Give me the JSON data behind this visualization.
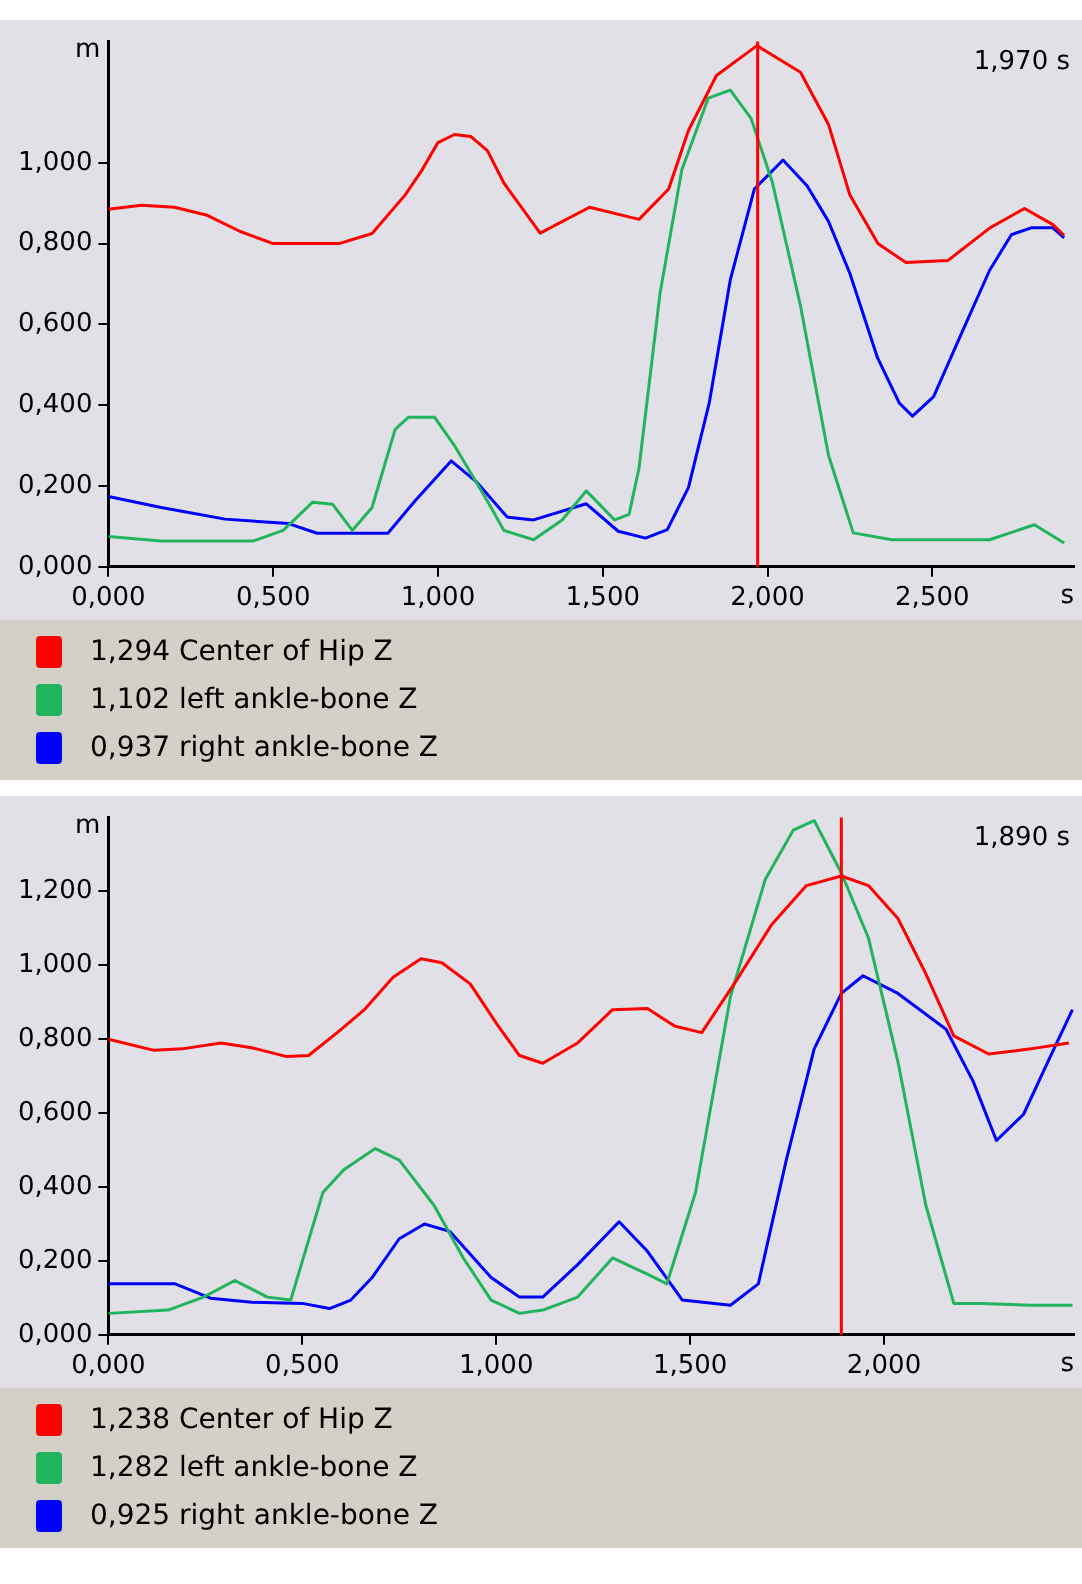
{
  "chart_data": [
    {
      "type": "line",
      "xlabel": "s",
      "ylabel": "m",
      "xlim": [
        0,
        2.93
      ],
      "ylim": [
        0,
        1.3
      ],
      "xticks": [
        {
          "value": 0,
          "label": "0,000"
        },
        {
          "value": 0.5,
          "label": "0,500"
        },
        {
          "value": 1,
          "label": "1,000"
        },
        {
          "value": 1.5,
          "label": "1,500"
        },
        {
          "value": 2,
          "label": "2,000"
        },
        {
          "value": 2.5,
          "label": "2,500"
        }
      ],
      "yticks": [
        {
          "value": 0,
          "label": "0,000"
        },
        {
          "value": 0.2,
          "label": "0,200"
        },
        {
          "value": 0.4,
          "label": "0,400"
        },
        {
          "value": 0.6,
          "label": "0,600"
        },
        {
          "value": 0.8,
          "label": "0,800"
        },
        {
          "value": 1,
          "label": "1,000"
        }
      ],
      "grid": false,
      "legend": "bottom left",
      "ref_lines": [
        {
          "axis": "x",
          "value": 1.97,
          "color": "#ff0000"
        }
      ],
      "annotations": [
        "1,970 s"
      ],
      "series": [
        {
          "name": "1,294 Center of Hip Z",
          "color": "#ff0000",
          "x": [
            0,
            0.1,
            0.2,
            0.3,
            0.4,
            0.5,
            0.6,
            0.7,
            0.8,
            0.9,
            0.95,
            1.0,
            1.05,
            1.1,
            1.15,
            1.2,
            1.31,
            1.46,
            1.61,
            1.7,
            1.76,
            1.845,
            1.968,
            2.1,
            2.185,
            2.25,
            2.335,
            2.42,
            2.547,
            2.675,
            2.78,
            2.866,
            2.9
          ],
          "values": [
            0.885,
            0.895,
            0.89,
            0.87,
            0.83,
            0.8,
            0.8,
            0.8,
            0.825,
            0.92,
            0.98,
            1.05,
            1.07,
            1.065,
            1.03,
            0.95,
            0.826,
            0.89,
            0.86,
            0.935,
            1.08,
            1.216,
            1.29,
            1.224,
            1.095,
            0.92,
            0.8,
            0.753,
            0.758,
            0.839,
            0.887,
            0.847,
            0.82
          ]
        },
        {
          "name": "1,102 left ankle-bone Z",
          "color": "#22b35e",
          "x": [
            0,
            0.16,
            0.44,
            0.53,
            0.62,
            0.68,
            0.74,
            0.8,
            0.87,
            0.91,
            0.99,
            1.05,
            1.15,
            1.2,
            1.29,
            1.377,
            1.45,
            1.536,
            1.58,
            1.61,
            1.674,
            1.74,
            1.82,
            1.887,
            1.95,
            2.015,
            2.1,
            2.185,
            2.26,
            2.377,
            2.674,
            2.81,
            2.9
          ],
          "values": [
            0.075,
            0.064,
            0.064,
            0.09,
            0.16,
            0.155,
            0.09,
            0.147,
            0.34,
            0.37,
            0.37,
            0.3,
            0.163,
            0.09,
            0.067,
            0.116,
            0.188,
            0.116,
            0.13,
            0.244,
            0.678,
            0.983,
            1.16,
            1.18,
            1.11,
            0.951,
            0.646,
            0.276,
            0.084,
            0.067,
            0.067,
            0.104,
            0.059
          ]
        },
        {
          "name": "0,937 right ankle-bone Z",
          "color": "#0000ff",
          "x": [
            0,
            0.16,
            0.354,
            0.547,
            0.633,
            0.848,
            0.93,
            1.04,
            1.116,
            1.21,
            1.29,
            1.45,
            1.547,
            1.63,
            1.696,
            1.76,
            1.823,
            1.887,
            1.96,
            2.047,
            2.12,
            2.185,
            2.25,
            2.334,
            2.4,
            2.44,
            2.504,
            2.59,
            2.674,
            2.74,
            2.8,
            2.866,
            2.9
          ],
          "values": [
            0.174,
            0.147,
            0.118,
            0.107,
            0.083,
            0.083,
            0.163,
            0.262,
            0.211,
            0.123,
            0.116,
            0.156,
            0.088,
            0.071,
            0.092,
            0.196,
            0.405,
            0.71,
            0.935,
            1.007,
            0.943,
            0.855,
            0.726,
            0.517,
            0.405,
            0.373,
            0.421,
            0.58,
            0.734,
            0.822,
            0.839,
            0.839,
            0.814
          ]
        }
      ]
    },
    {
      "type": "line",
      "xlabel": "s",
      "ylabel": "m",
      "xlim": [
        0,
        2.49
      ],
      "ylim": [
        0,
        1.4
      ],
      "xticks": [
        {
          "value": 0,
          "label": "0,000"
        },
        {
          "value": 0.5,
          "label": "0,500"
        },
        {
          "value": 1,
          "label": "1,000"
        },
        {
          "value": 1.5,
          "label": "1,500"
        },
        {
          "value": 2,
          "label": "2,000"
        }
      ],
      "yticks": [
        {
          "value": 0,
          "label": "0,000"
        },
        {
          "value": 0.2,
          "label": "0,200"
        },
        {
          "value": 0.4,
          "label": "0,400"
        },
        {
          "value": 0.6,
          "label": "0,600"
        },
        {
          "value": 0.8,
          "label": "0,800"
        },
        {
          "value": 1,
          "label": "1,000"
        },
        {
          "value": 1.2,
          "label": "1,200"
        }
      ],
      "grid": false,
      "legend": "bottom left",
      "ref_lines": [
        {
          "axis": "x",
          "value": 1.89,
          "color": "#ff0000"
        }
      ],
      "annotations": [
        "1,890 s"
      ],
      "series": [
        {
          "name": "1,238 Center of Hip Z",
          "color": "#ff0000",
          "x": [
            0,
            0.118,
            0.19,
            0.29,
            0.37,
            0.46,
            0.516,
            0.59,
            0.66,
            0.734,
            0.806,
            0.86,
            0.933,
            1.005,
            1.06,
            1.12,
            1.21,
            1.3,
            1.39,
            1.46,
            1.53,
            1.62,
            1.71,
            1.8,
            1.89,
            1.96,
            2.036,
            2.108,
            2.18,
            2.27,
            2.378,
            2.477
          ],
          "values": [
            0.8,
            0.77,
            0.774,
            0.79,
            0.777,
            0.753,
            0.756,
            0.818,
            0.88,
            0.968,
            1.018,
            1.007,
            0.95,
            0.836,
            0.756,
            0.735,
            0.79,
            0.88,
            0.883,
            0.836,
            0.818,
            0.96,
            1.11,
            1.216,
            1.242,
            1.216,
            1.127,
            0.977,
            0.809,
            0.76,
            0.774,
            0.79
          ]
        },
        {
          "name": "1,282 left ankle-bone Z",
          "color": "#22b35e",
          "x": [
            0,
            0.154,
            0.245,
            0.326,
            0.41,
            0.47,
            0.553,
            0.607,
            0.688,
            0.75,
            0.84,
            0.915,
            0.987,
            1.06,
            1.12,
            1.21,
            1.3,
            1.39,
            1.44,
            1.514,
            1.604,
            1.694,
            1.766,
            1.82,
            1.89,
            1.96,
            2.036,
            2.108,
            2.18,
            2.25,
            2.378,
            2.486
          ],
          "values": [
            0.058,
            0.067,
            0.102,
            0.147,
            0.102,
            0.094,
            0.385,
            0.447,
            0.504,
            0.473,
            0.35,
            0.208,
            0.094,
            0.058,
            0.067,
            0.102,
            0.208,
            0.164,
            0.138,
            0.385,
            0.915,
            1.233,
            1.366,
            1.392,
            1.25,
            1.074,
            0.739,
            0.35,
            0.085,
            0.085,
            0.08,
            0.08
          ]
        },
        {
          "name": "0,925 right ankle-bone Z",
          "color": "#0000ff",
          "x": [
            0,
            0.172,
            0.263,
            0.37,
            0.5,
            0.57,
            0.625,
            0.68,
            0.75,
            0.815,
            0.88,
            0.987,
            1.06,
            1.12,
            1.21,
            1.317,
            1.39,
            1.48,
            1.604,
            1.676,
            1.748,
            1.82,
            1.89,
            1.946,
            2.036,
            2.16,
            2.23,
            2.29,
            2.36,
            2.43,
            2.486
          ],
          "values": [
            0.138,
            0.138,
            0.099,
            0.088,
            0.085,
            0.071,
            0.094,
            0.155,
            0.26,
            0.3,
            0.28,
            0.155,
            0.102,
            0.102,
            0.19,
            0.306,
            0.226,
            0.094,
            0.08,
            0.138,
            0.473,
            0.774,
            0.924,
            0.972,
            0.924,
            0.827,
            0.686,
            0.526,
            0.597,
            0.756,
            0.88
          ]
        }
      ]
    }
  ]
}
